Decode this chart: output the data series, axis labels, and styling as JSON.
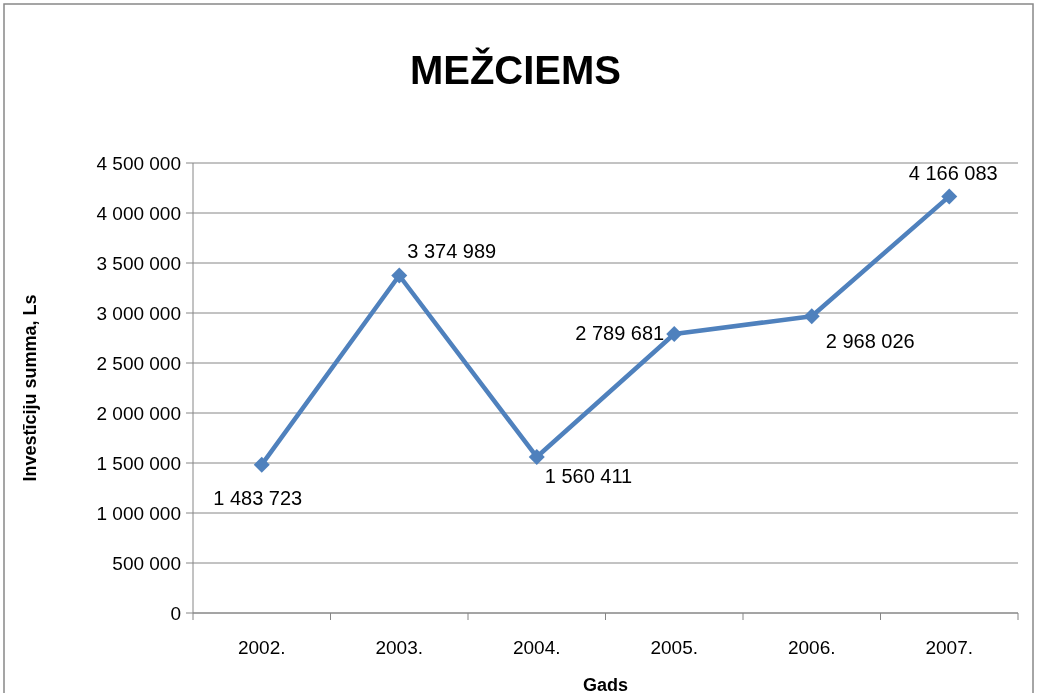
{
  "chart_data": {
    "type": "line",
    "title": "MEŽCIEMS",
    "xlabel": "Gads",
    "ylabel": "Investīciju summa, Ls",
    "categories": [
      "2002.",
      "2003.",
      "2004.",
      "2005.",
      "2006.",
      "2007."
    ],
    "series": [
      {
        "color": "#4f81bd",
        "values": [
          1483723,
          3374989,
          1560411,
          2789681,
          2968026,
          4166083
        ],
        "value_labels": [
          "1 483 723",
          "3 374 989",
          "1 560 411",
          "2 789 681",
          "2 968 026",
          "4 166 083"
        ]
      }
    ],
    "ylim": [
      0,
      4500000
    ],
    "yticks": [
      0,
      {
        "value": 500000,
        "label": "500 000"
      },
      {
        "value": 1000000,
        "label": "1 000 000"
      },
      {
        "value": 1500000,
        "label": "1 500 000"
      },
      {
        "value": 2000000,
        "label": "2 000 000"
      },
      {
        "value": 2500000,
        "label": "2 500 000"
      },
      {
        "value": 3000000,
        "label": "3 000 000"
      },
      {
        "value": 3500000,
        "label": "3 500 000"
      },
      {
        "value": 4000000,
        "label": "4 000 000"
      },
      {
        "value": 4500000,
        "label": "4 500 000"
      }
    ],
    "grid": "y",
    "marker": "diamond",
    "line_style": "solid"
  }
}
